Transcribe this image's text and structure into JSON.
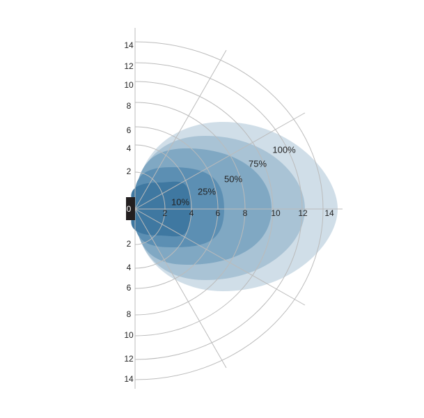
{
  "origin_label": "0",
  "x_labels": [
    "2",
    "4",
    "6",
    "8",
    "10",
    "12",
    "14"
  ],
  "upper_labels": [
    "2",
    "4",
    "6",
    "8",
    "10",
    "12",
    "14"
  ],
  "lower_labels": [
    "2",
    "4",
    "6",
    "8",
    "10",
    "12",
    "14"
  ],
  "zones": [
    {
      "label": "100%"
    },
    {
      "label": "75%"
    },
    {
      "label": "50%"
    },
    {
      "label": "25%"
    },
    {
      "label": "10%"
    }
  ]
}
